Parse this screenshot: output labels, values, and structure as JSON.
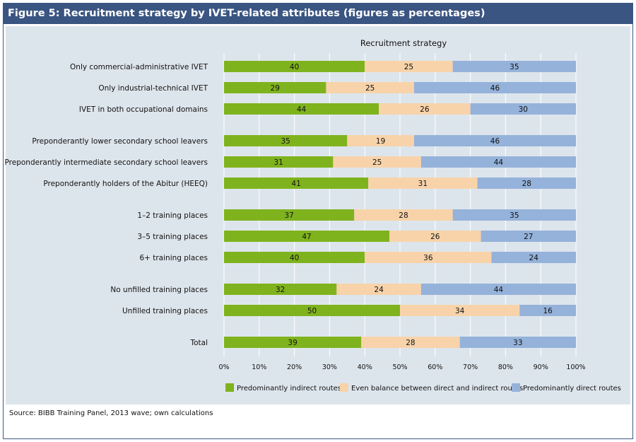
{
  "figure": {
    "title": "Figure 5: Recruitment strategy by IVET-related attributes (figures as percentages)",
    "source": "Source: BIBB Training Panel, 2013 wave; own calculations"
  },
  "chart_data": {
    "type": "bar",
    "orientation": "horizontal",
    "stacked": true,
    "title": "Recruitment strategy",
    "xlim": [
      0,
      100
    ],
    "x_ticks": [
      "0%",
      "10%",
      "20%",
      "30%",
      "40%",
      "50%",
      "60%",
      "70%",
      "80%",
      "90%",
      "100%"
    ],
    "legend_position": "bottom",
    "categories": [
      "Only commercial-administrative IVET",
      "Only industrial-technical IVET",
      "IVET in both occupational domains",
      "Preponderantly lower secondary school leavers",
      "Preponderantly intermediate secondary school leavers",
      "Preponderantly holders of the Abitur (HEEQ)",
      "1–2 training places",
      "3–5 training places",
      "6+ training places",
      "No unfilled training places",
      "Unfilled training places",
      "Total"
    ],
    "groups": [
      3,
      3,
      3,
      2,
      1
    ],
    "series": [
      {
        "name": "Predominantly indirect routes",
        "color": "#7fb31d",
        "values": [
          40,
          29,
          44,
          35,
          31,
          41,
          37,
          47,
          40,
          32,
          50,
          39
        ]
      },
      {
        "name": "Even balance between direct and indirect routes",
        "color": "#f8d3aa",
        "values": [
          25,
          25,
          26,
          19,
          25,
          31,
          28,
          26,
          36,
          24,
          34,
          28
        ]
      },
      {
        "name": "Predominantly direct routes",
        "color": "#95b2da",
        "values": [
          35,
          46,
          30,
          46,
          44,
          28,
          35,
          27,
          24,
          44,
          16,
          33
        ]
      }
    ]
  }
}
